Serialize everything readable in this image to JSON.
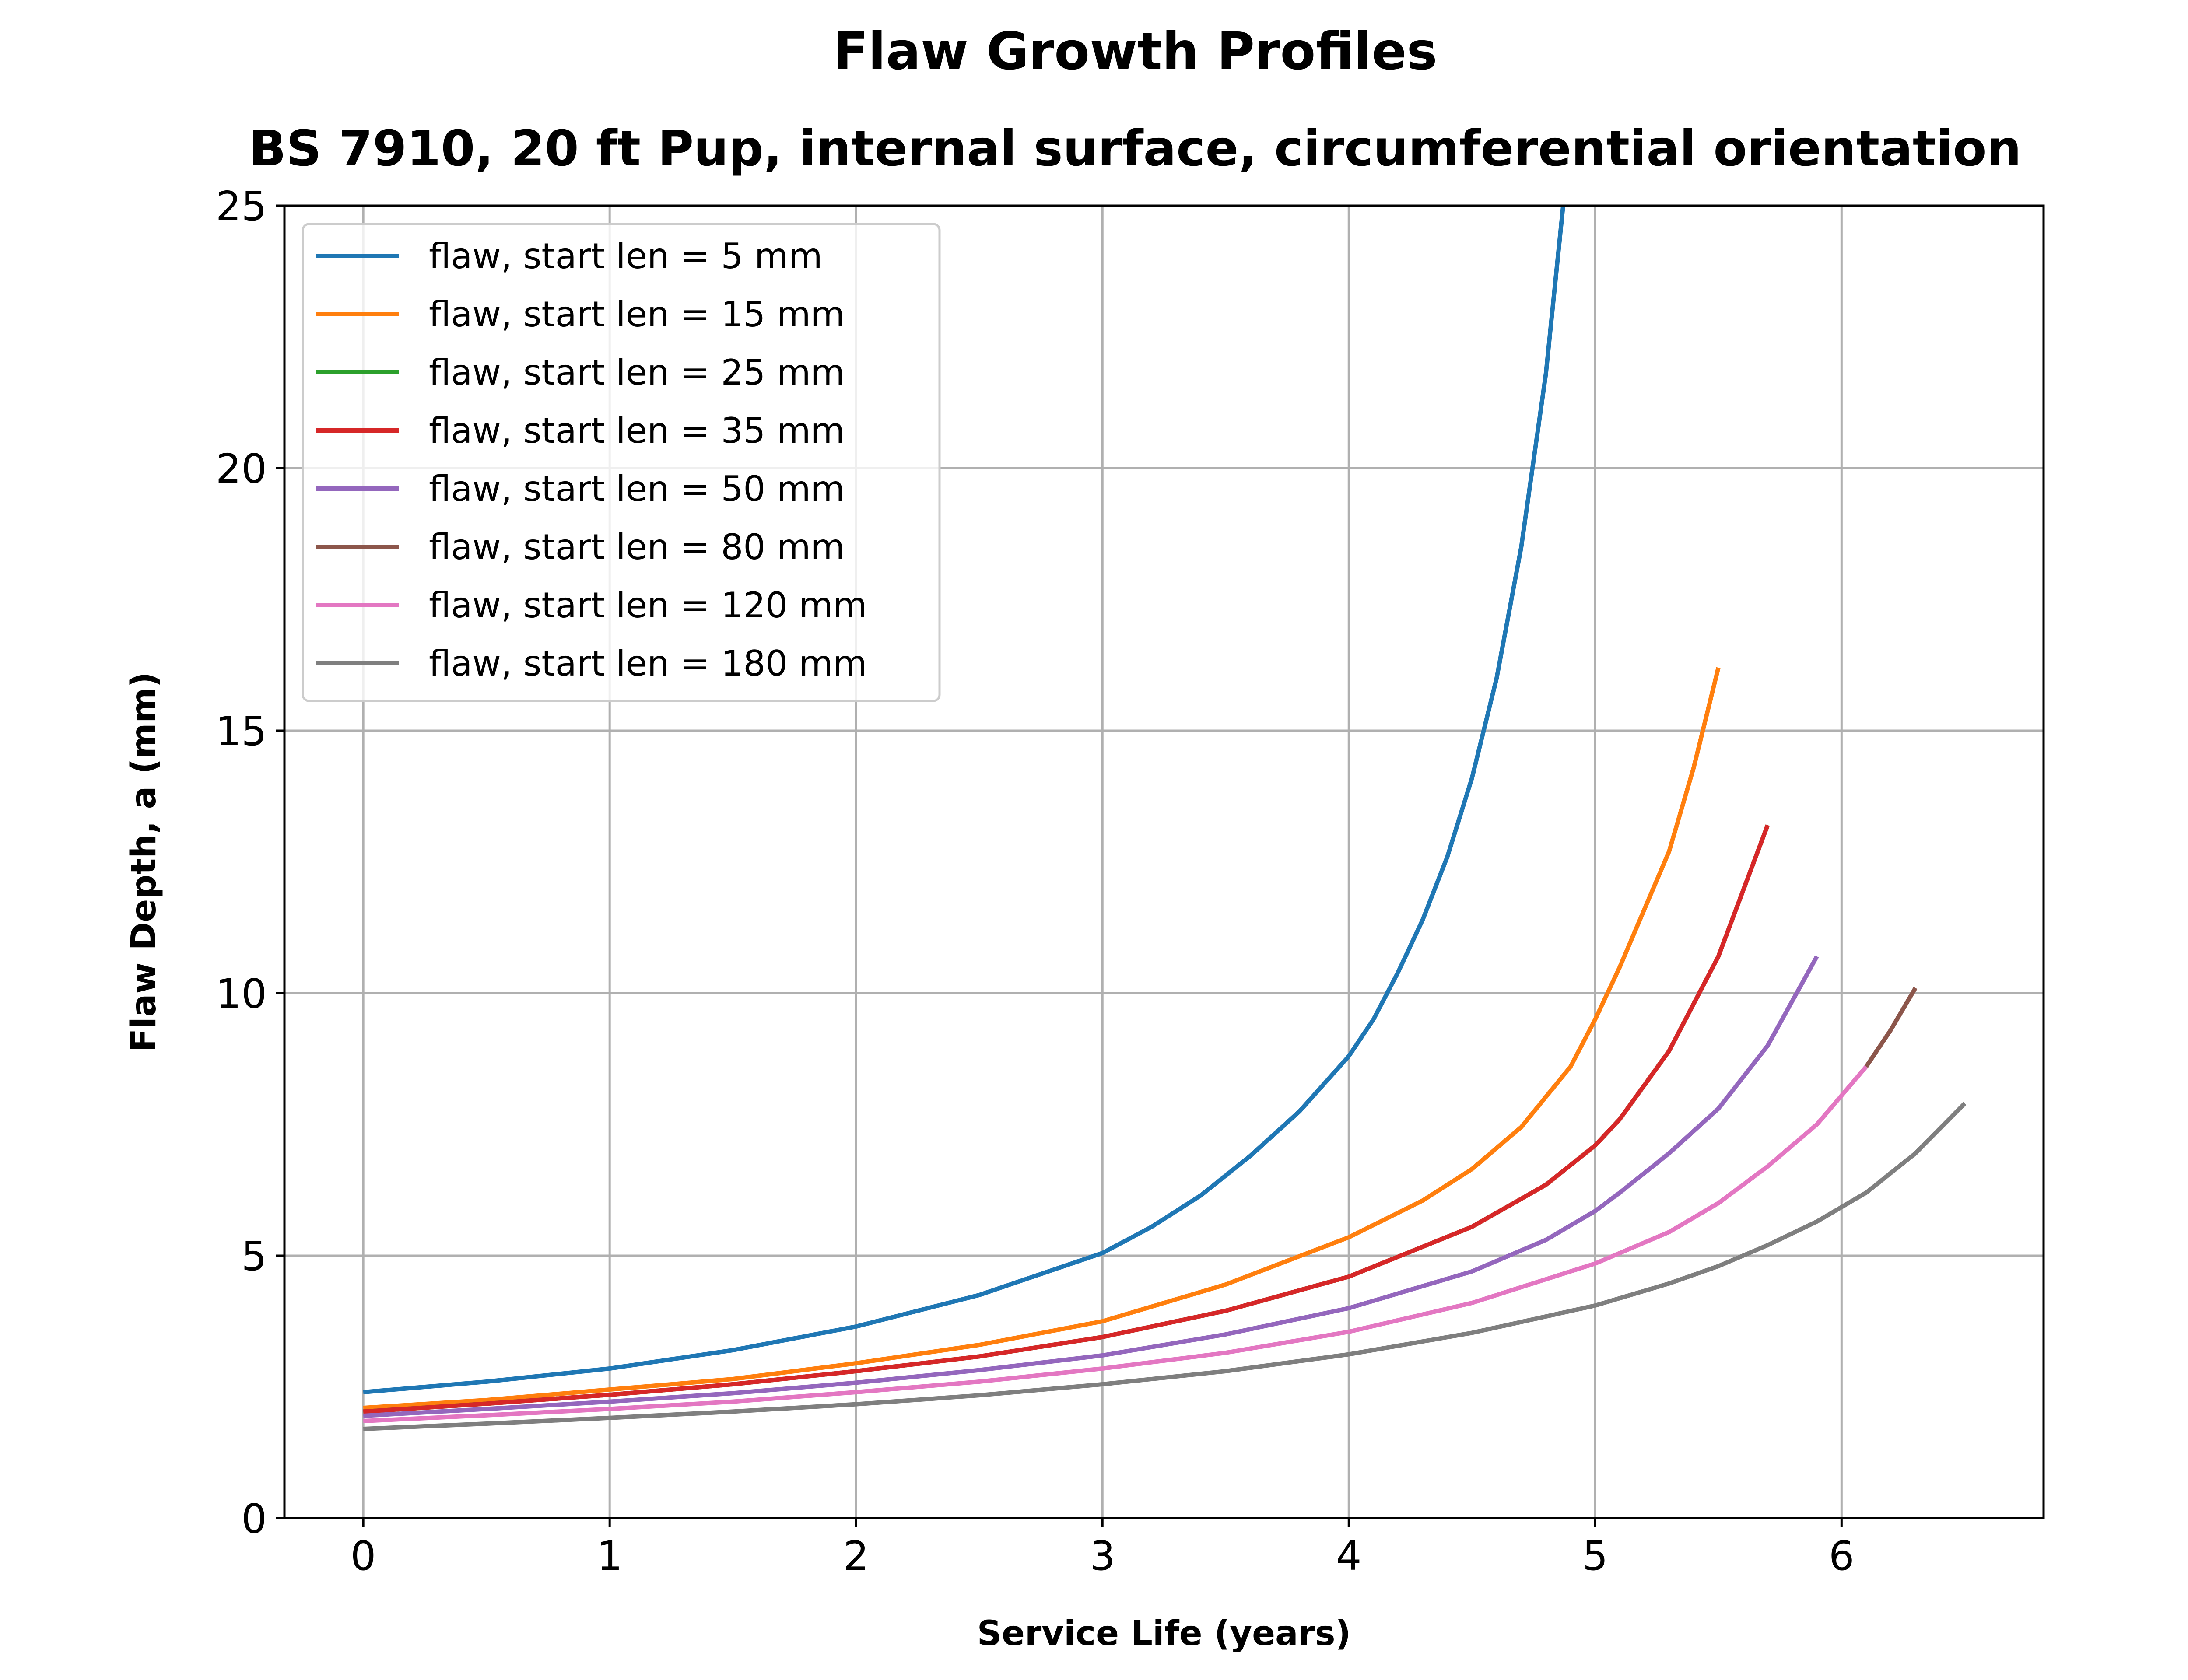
{
  "chart_data": {
    "type": "line",
    "title": "Flaw Growth Profiles",
    "subtitle": "BS 7910, 20 ft Pup, internal surface, circumferential orientation",
    "xlabel": "Service Life (years)",
    "ylabel": "Flaw Depth, a (mm)",
    "xlim": [
      -0.32,
      6.82
    ],
    "ylim": [
      0,
      25
    ],
    "xticks": [
      "0",
      "1",
      "2",
      "3",
      "4",
      "5",
      "6"
    ],
    "yticks": [
      "0",
      "5",
      "10",
      "15",
      "20",
      "25"
    ],
    "grid": true,
    "legend_position": "upper-left",
    "series": [
      {
        "name": "flaw, start len = 5 mm",
        "color": "#1f77b4",
        "x": [
          0,
          0.5,
          1,
          1.5,
          2,
          2.5,
          3,
          3.2,
          3.4,
          3.6,
          3.8,
          4,
          4.1,
          4.2,
          4.3,
          4.4,
          4.5,
          4.6,
          4.7,
          4.8,
          4.87
        ],
        "y": [
          2.4,
          2.6,
          2.85,
          3.2,
          3.65,
          4.25,
          5.05,
          5.55,
          6.15,
          6.9,
          7.75,
          8.8,
          9.5,
          10.4,
          11.4,
          12.6,
          14.1,
          16.0,
          18.5,
          21.8,
          25.0
        ]
      },
      {
        "name": "flaw, start len = 15 mm",
        "color": "#ff7f0e",
        "x": [
          0,
          0.5,
          1,
          1.5,
          2,
          2.5,
          3,
          3.5,
          4,
          4.3,
          4.5,
          4.7,
          4.9,
          5.0,
          5.1,
          5.2,
          5.3,
          5.4,
          5.5
        ],
        "y": [
          2.1,
          2.25,
          2.45,
          2.65,
          2.95,
          3.3,
          3.75,
          4.45,
          5.35,
          6.05,
          6.65,
          7.45,
          8.6,
          9.5,
          10.5,
          11.6,
          12.7,
          14.3,
          16.2
        ]
      },
      {
        "name": "flaw, start len = 25 mm",
        "color": "#2ca02c",
        "x": [
          0,
          0.5,
          1,
          1.5,
          2,
          2.5,
          3,
          3.5,
          4,
          4.5,
          4.8,
          5.0,
          5.1,
          5.3,
          5.5,
          5.7
        ],
        "y": [
          2.03,
          2.18,
          2.35,
          2.55,
          2.8,
          3.08,
          3.45,
          3.95,
          4.6,
          5.55,
          6.35,
          7.1,
          7.6,
          8.9,
          10.7,
          13.2
        ]
      },
      {
        "name": "flaw, start len = 35 mm",
        "color": "#d62728",
        "x": [
          0,
          0.5,
          1,
          1.5,
          2,
          2.5,
          3,
          3.5,
          4,
          4.5,
          4.8,
          5.0,
          5.1,
          5.3,
          5.5,
          5.7
        ],
        "y": [
          2.03,
          2.18,
          2.35,
          2.55,
          2.8,
          3.08,
          3.45,
          3.95,
          4.6,
          5.55,
          6.35,
          7.1,
          7.6,
          8.9,
          10.7,
          13.2
        ]
      },
      {
        "name": "flaw, start len = 50 mm",
        "color": "#9467bd",
        "x": [
          0,
          0.5,
          1,
          1.5,
          2,
          2.5,
          3,
          3.5,
          4,
          4.5,
          4.8,
          5.0,
          5.1,
          5.3,
          5.5,
          5.7,
          5.9
        ],
        "y": [
          1.95,
          2.08,
          2.22,
          2.38,
          2.58,
          2.82,
          3.1,
          3.5,
          4.0,
          4.7,
          5.3,
          5.85,
          6.2,
          6.95,
          7.8,
          9.0,
          10.7
        ]
      },
      {
        "name": "flaw, start len = 80 mm",
        "color": "#8c564b",
        "x": [
          6.1,
          6.2,
          6.3
        ],
        "y": [
          8.6,
          9.3,
          10.1
        ]
      },
      {
        "name": "flaw, start len = 120 mm",
        "color": "#e377c2",
        "x": [
          0,
          0.5,
          1,
          1.5,
          2,
          2.5,
          3,
          3.5,
          4,
          4.5,
          5.0,
          5.3,
          5.5,
          5.7,
          5.9,
          6.1
        ],
        "y": [
          1.85,
          1.96,
          2.08,
          2.22,
          2.4,
          2.6,
          2.85,
          3.15,
          3.55,
          4.1,
          4.85,
          5.45,
          6.0,
          6.7,
          7.5,
          8.6
        ]
      },
      {
        "name": "flaw, start len = 180 mm",
        "color": "#7f7f7f",
        "x": [
          0,
          0.5,
          1,
          1.5,
          2,
          2.5,
          3,
          3.5,
          4,
          4.5,
          5.0,
          5.3,
          5.5,
          5.7,
          5.9,
          6.1,
          6.3,
          6.5
        ],
        "y": [
          1.7,
          1.8,
          1.91,
          2.03,
          2.17,
          2.34,
          2.55,
          2.8,
          3.12,
          3.53,
          4.05,
          4.47,
          4.8,
          5.2,
          5.65,
          6.2,
          6.95,
          7.9
        ]
      }
    ]
  }
}
